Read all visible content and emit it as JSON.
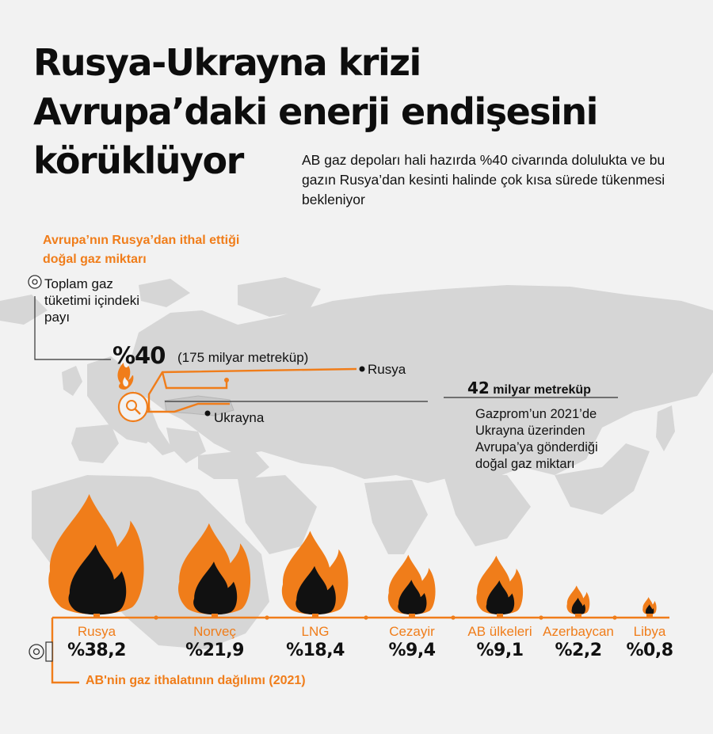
{
  "title_lines": [
    "Rusya-Ukrayna krizi",
    "Avrupa’daki enerji endişesini",
    "körüklüyor"
  ],
  "subtitle": "AB gaz depoları hali hazırda %40 civarında dolulukta ve bu gazın Rusya’dan kesinti halinde çok kısa sürede tükenmesi bekleniyor",
  "import_section": {
    "heading_line1": "Avrupa’nın Rusya’dan ithal ettiği",
    "heading_line2": "doğal gaz miktarı",
    "share_label_lines": [
      "Toplam gaz",
      "tüketimi içindeki",
      "payı"
    ],
    "share_value": "%40",
    "volume": "(175 milyar metreküp)"
  },
  "map_labels": {
    "russia": "Rusya",
    "ukraine": "Ukrayna"
  },
  "transit": {
    "amount_number": "42",
    "amount_unit": "milyar metreküp",
    "description_lines": [
      "Gazprom’un 2021’de",
      "Ukrayna üzerinden",
      "Avrupa’ya gönderdiği",
      "doğal gaz miktarı"
    ]
  },
  "colors": {
    "accent": "#f07d1a",
    "flame_inner": "#111111",
    "map_land": "#d4d4d4",
    "background": "#f2f2f2"
  },
  "suppliers_heading": "AB'nin gaz ithalatının dağılımı (2021)",
  "suppliers": [
    {
      "name": "Rusya",
      "label": "%38,2",
      "share": 38.2
    },
    {
      "name": "Norveç",
      "label": "%21,9",
      "share": 21.9
    },
    {
      "name": "LNG",
      "label": "%18,4",
      "share": 18.4
    },
    {
      "name": "Cezayir",
      "label": "%9,4",
      "share": 9.4
    },
    {
      "name": "AB ülkeleri",
      "label": "%9,1",
      "share": 9.1
    },
    {
      "name": "Azerbaycan",
      "label": "%2,2",
      "share": 2.2
    },
    {
      "name": "Libya",
      "label": "%0,8",
      "share": 0.8
    }
  ],
  "icons": [
    "flame-icon",
    "gas-meter-icon",
    "pipe-valve-icon"
  ]
}
